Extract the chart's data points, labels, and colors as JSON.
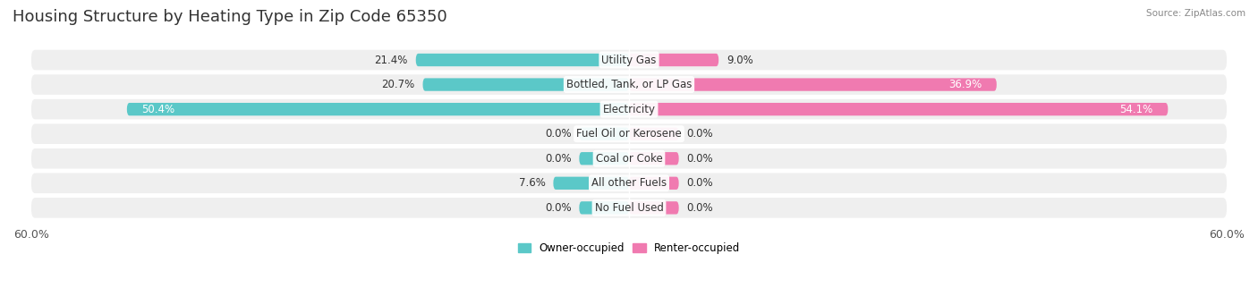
{
  "title": "Housing Structure by Heating Type in Zip Code 65350",
  "source_text": "Source: ZipAtlas.com",
  "categories": [
    "Utility Gas",
    "Bottled, Tank, or LP Gas",
    "Electricity",
    "Fuel Oil or Kerosene",
    "Coal or Coke",
    "All other Fuels",
    "No Fuel Used"
  ],
  "owner_values": [
    21.4,
    20.7,
    50.4,
    0.0,
    0.0,
    7.6,
    0.0
  ],
  "renter_values": [
    9.0,
    36.9,
    54.1,
    0.0,
    0.0,
    0.0,
    0.0
  ],
  "owner_color": "#5bc8c8",
  "renter_color": "#f07ab0",
  "owner_label": "Owner-occupied",
  "renter_label": "Renter-occupied",
  "owner_color_dark": "#2a9d9d",
  "renter_color_dark": "#e05090",
  "xlim": 60.0,
  "bar_height": 0.52,
  "background_color": "#ffffff",
  "row_bg_color": "#efefef",
  "title_fontsize": 13,
  "label_fontsize": 8.5,
  "value_fontsize": 8.5,
  "axis_label_fontsize": 9,
  "zero_bar_width": 5.0
}
